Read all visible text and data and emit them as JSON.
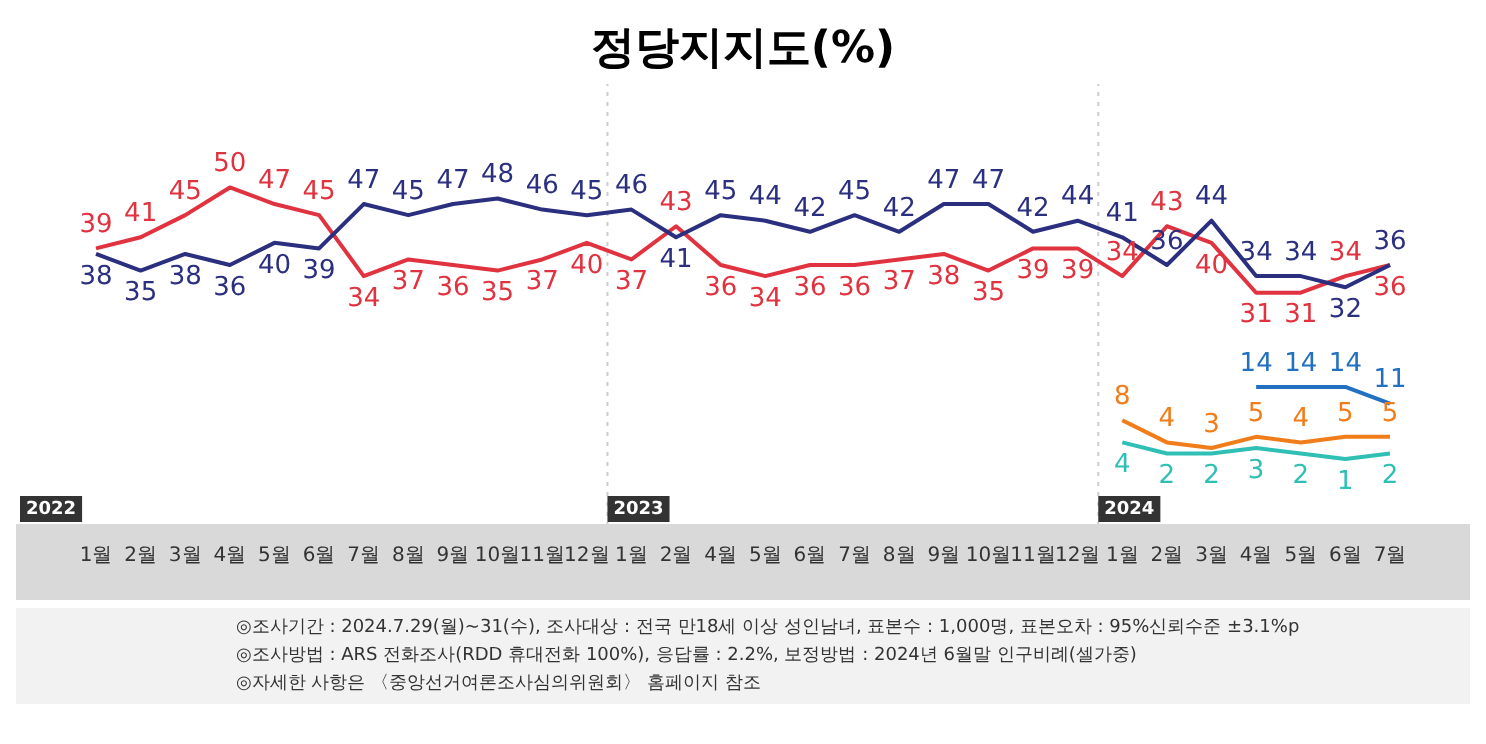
{
  "chart_data": {
    "type": "line",
    "title": "정당지지도(%)",
    "categories": [
      "1월",
      "2월",
      "3월",
      "4월",
      "5월",
      "6월",
      "7월",
      "8월",
      "9월",
      "10월",
      "11월",
      "12월",
      "1월",
      "2월",
      "4월",
      "5월",
      "6월",
      "7월",
      "8월",
      "9월",
      "10월",
      "11월",
      "12월",
      "1월",
      "2월",
      "3월",
      "4월",
      "5월",
      "6월",
      "7월"
    ],
    "series": [
      {
        "color": "#2b2f7f",
        "values": [
          38,
          35,
          38,
          36,
          40,
          39,
          47,
          45,
          47,
          48,
          46,
          45,
          46,
          41,
          45,
          44,
          42,
          45,
          42,
          47,
          47,
          42,
          44,
          41,
          36,
          44,
          34,
          34,
          32,
          36
        ]
      },
      {
        "color": "#e0333f",
        "values": [
          39,
          41,
          45,
          50,
          47,
          45,
          34,
          37,
          36,
          35,
          37,
          40,
          37,
          43,
          36,
          34,
          36,
          36,
          37,
          38,
          35,
          39,
          39,
          34,
          43,
          40,
          31,
          31,
          34,
          36
        ]
      },
      {
        "color": "#2270c0",
        "values": [
          null,
          null,
          null,
          null,
          null,
          null,
          null,
          null,
          null,
          null,
          null,
          null,
          null,
          null,
          null,
          null,
          null,
          null,
          null,
          null,
          null,
          null,
          null,
          null,
          null,
          null,
          14,
          14,
          14,
          11
        ]
      },
      {
        "color": "#f07d1a",
        "values": [
          null,
          null,
          null,
          null,
          null,
          null,
          null,
          null,
          null,
          null,
          null,
          null,
          null,
          null,
          null,
          null,
          null,
          null,
          null,
          null,
          null,
          null,
          null,
          8,
          4,
          3,
          5,
          4,
          5,
          5
        ]
      },
      {
        "color": "#2fbfb5",
        "values": [
          null,
          null,
          null,
          null,
          null,
          null,
          null,
          null,
          null,
          null,
          null,
          null,
          null,
          null,
          null,
          null,
          null,
          null,
          null,
          null,
          null,
          null,
          null,
          4,
          2,
          2,
          3,
          2,
          1,
          2
        ]
      }
    ],
    "data_labels": true,
    "legend": false,
    "grid": false,
    "marker": "none",
    "line_style": "solid",
    "tick_labels": "x",
    "annotations": [
      "2022",
      "2023",
      "2024",
      "◎조사기간 : 2024.7.29(월)~31(수), 조사대상 : 전국 만18세 이상 성인남녀, 표본수 : 1,000명, 표본오차 : 95%신뢰수준 ±3.1%p",
      "◎조사방법 : ARS 전화조사(RDD 휴대전화 100%), 응답률 : 2.2%, 보정방법 : 2024년 6월말 인구비례(셀가중)",
      "◎자세한 사항은 〈중앙선거여론조사심의위원회〉 홈페이지 참조"
    ]
  }
}
